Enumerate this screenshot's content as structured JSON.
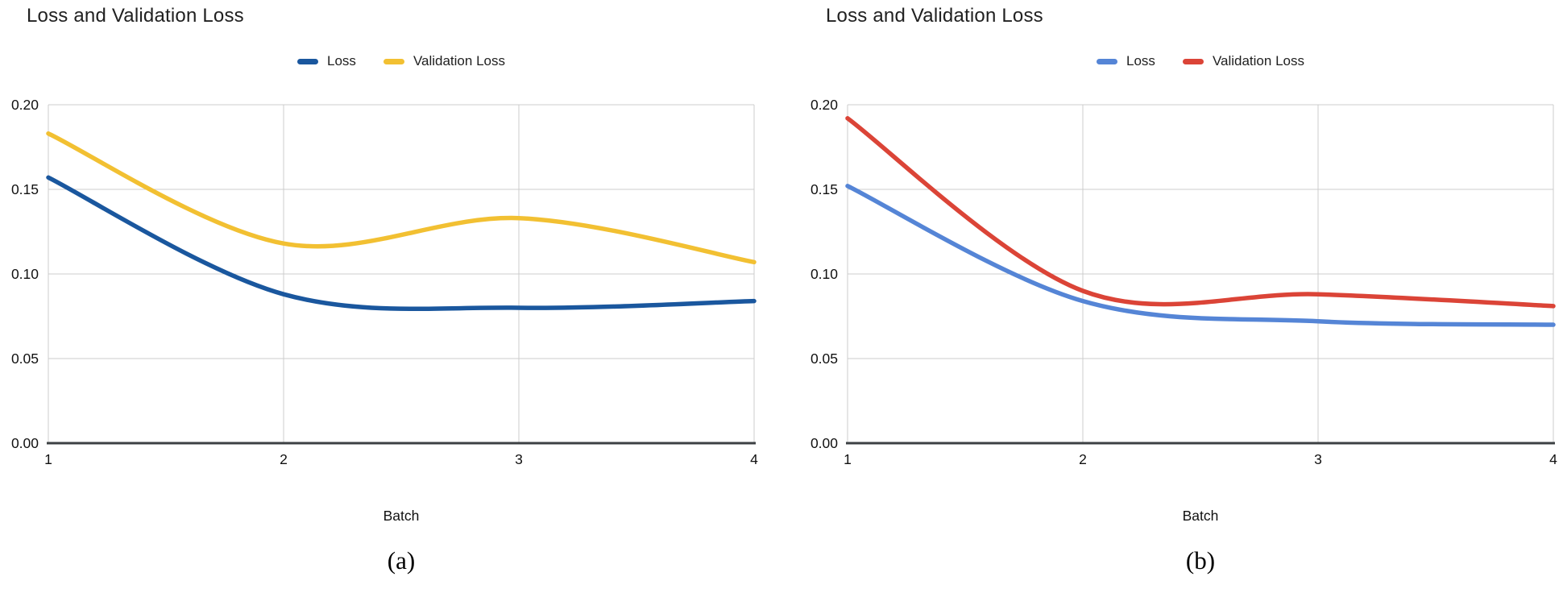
{
  "page": {
    "background": "#ffffff"
  },
  "style": {
    "gridline_color": "#cccccc",
    "axis_color": "#3c4043",
    "line_width": 5.5
  },
  "chart_data": [
    {
      "type": "line",
      "title": "Loss and Validation Loss",
      "caption": "(a)",
      "xlabel": "Batch",
      "ylabel": "",
      "x": [
        1,
        2,
        3,
        4
      ],
      "series": [
        {
          "name": "Loss",
          "color": "#1a579e",
          "values": [
            0.157,
            0.088,
            0.08,
            0.084
          ]
        },
        {
          "name": "Validation Loss",
          "color": "#f2c032",
          "values": [
            0.183,
            0.118,
            0.133,
            0.107
          ]
        }
      ],
      "xlim": [
        1,
        4
      ],
      "ylim": [
        0,
        0.2
      ],
      "xticks": [
        "1",
        "2",
        "3",
        "4"
      ],
      "yticks": [
        "0.00",
        "0.05",
        "0.10",
        "0.15",
        "0.20"
      ],
      "grid": true,
      "legend_position": "top-center",
      "curve": "smooth"
    },
    {
      "type": "line",
      "title": "Loss and Validation Loss",
      "caption": "(b)",
      "xlabel": "Batch",
      "ylabel": "",
      "x": [
        1,
        2,
        3,
        4
      ],
      "series": [
        {
          "name": "Loss",
          "color": "#5585d6",
          "values": [
            0.152,
            0.084,
            0.072,
            0.07
          ]
        },
        {
          "name": "Validation Loss",
          "color": "#db4437",
          "values": [
            0.192,
            0.09,
            0.088,
            0.081
          ]
        }
      ],
      "xlim": [
        1,
        4
      ],
      "ylim": [
        0,
        0.2
      ],
      "xticks": [
        "1",
        "2",
        "3",
        "4"
      ],
      "yticks": [
        "0.00",
        "0.05",
        "0.10",
        "0.15",
        "0.20"
      ],
      "grid": true,
      "legend_position": "top-center",
      "curve": "smooth"
    }
  ]
}
